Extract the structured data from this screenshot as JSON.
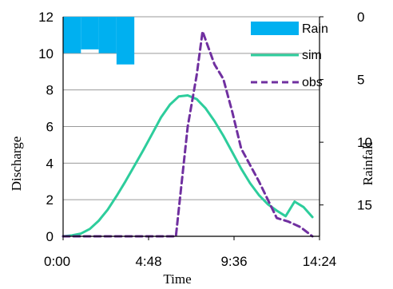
{
  "chart_data": {
    "type": "line",
    "title": "",
    "xlabel": "Time",
    "ylabel": "Discharge",
    "y2label": "Rainfall",
    "xlim": [
      0,
      864
    ],
    "ylim": [
      0,
      12
    ],
    "y2lim": [
      0,
      17.5
    ],
    "y2_inverted": true,
    "grid": "horizontal",
    "legend_position": "top-right",
    "x_tick_labels": [
      "0:00",
      "4:48",
      "9:36",
      "14:24"
    ],
    "x_tick_values": [
      0,
      288,
      576,
      864
    ],
    "y_tick_labels": [
      "0",
      "2",
      "4",
      "6",
      "8",
      "10",
      "12"
    ],
    "y_tick_values": [
      0,
      2,
      4,
      6,
      8,
      10,
      12
    ],
    "y2_tick_labels": [
      "0",
      "5",
      "10",
      "15"
    ],
    "y2_tick_values": [
      0,
      5,
      10,
      15
    ],
    "series": [
      {
        "name": "Rain",
        "kind": "bar",
        "axis": "y2",
        "color": "#00b0f0",
        "bars": [
          {
            "x0": 0,
            "x1": 60,
            "value": 2.9
          },
          {
            "x0": 60,
            "x1": 120,
            "value": 2.6
          },
          {
            "x0": 120,
            "x1": 180,
            "value": 2.9
          },
          {
            "x0": 180,
            "x1": 240,
            "value": 3.8
          }
        ]
      },
      {
        "name": "sim",
        "kind": "line",
        "axis": "y",
        "color": "#2dcd9c",
        "dash": "solid",
        "x": [
          0,
          30,
          60,
          90,
          120,
          150,
          180,
          210,
          240,
          270,
          300,
          330,
          360,
          390,
          420,
          450,
          480,
          510,
          540,
          570,
          600,
          630,
          660,
          690,
          720,
          750,
          780,
          810,
          840
        ],
        "y": [
          0,
          0.05,
          0.15,
          0.4,
          0.85,
          1.45,
          2.2,
          3.0,
          3.85,
          4.7,
          5.6,
          6.5,
          7.2,
          7.65,
          7.7,
          7.5,
          7.0,
          6.3,
          5.5,
          4.6,
          3.7,
          2.9,
          2.25,
          1.75,
          1.4,
          1.1,
          1.9,
          1.6,
          1.05
        ]
      },
      {
        "name": "obs",
        "kind": "line",
        "axis": "y",
        "color": "#7030a0",
        "dash": "dashed",
        "x": [
          0,
          60,
          120,
          180,
          240,
          270,
          330,
          380,
          420,
          450,
          470,
          510,
          540,
          570,
          600,
          660,
          720,
          760,
          800,
          840
        ],
        "y": [
          0,
          0,
          0,
          0,
          0,
          0,
          0,
          0,
          6.0,
          8.8,
          11.2,
          9.4,
          8.6,
          6.8,
          4.8,
          3.0,
          1.0,
          0.8,
          0.5,
          0.0
        ]
      }
    ]
  }
}
